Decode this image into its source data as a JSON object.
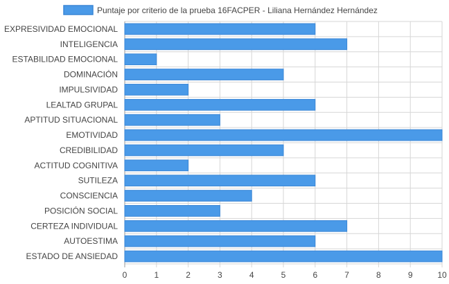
{
  "chart_data": {
    "type": "bar",
    "orientation": "horizontal",
    "legend": {
      "label": "Puntaje por criterio de la prueba 16FACPER - Liliana Hernández Hernández",
      "position": "top"
    },
    "categories": [
      "EXPRESIVIDAD EMOCIONAL",
      "INTELIGENCIA",
      "ESTABILIDAD EMOCIONAL",
      "DOMINACIÓN",
      "IMPULSIVIDAD",
      "LEALTAD GRUPAL",
      "APTITUD SITUACIONAL",
      "EMOTIVIDAD",
      "CREDIBILIDAD",
      "ACTITUD COGNITIVA",
      "SUTILEZA",
      "CONSCIENCIA",
      "POSICIÓN SOCIAL",
      "CERTEZA INDIVIDUAL",
      "AUTOESTIMA",
      "ESTADO DE ANSIEDAD"
    ],
    "series": [
      {
        "name": "Puntaje por criterio de la prueba 16FACPER - Liliana Hernández Hernández",
        "values": [
          6,
          7,
          1,
          5,
          2,
          6,
          3,
          10,
          5,
          2,
          6,
          4,
          3,
          7,
          6,
          10
        ]
      }
    ],
    "xlim": [
      0,
      10
    ],
    "xticks": [
      "0",
      "1",
      "2",
      "3",
      "4",
      "5",
      "6",
      "7",
      "8",
      "9",
      "10"
    ],
    "grid": true,
    "colors": {
      "bar_fill": "#4a9ae8",
      "bar_stroke": "#3a86d6",
      "grid": "#d6d6d6",
      "text": "#444444"
    }
  }
}
